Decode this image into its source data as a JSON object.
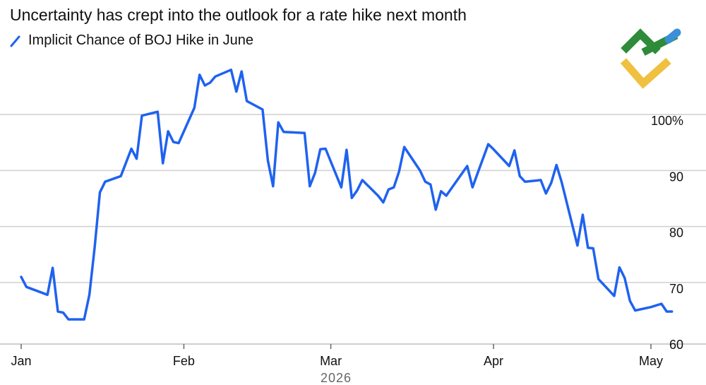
{
  "chart_data": {
    "type": "line",
    "title": "Uncertainty has crept into the outlook for a rate hike next month",
    "legend_position": "top-left",
    "series": [
      {
        "name": "Implicit Chance of BOJ Hike in June",
        "color": "#1f62f0",
        "points": [
          [
            "2026-01-01",
            71.0
          ],
          [
            "2026-01-02",
            69.2
          ],
          [
            "2026-01-06",
            67.8
          ],
          [
            "2026-01-07",
            72.6
          ],
          [
            "2026-01-08",
            64.8
          ],
          [
            "2026-01-09",
            64.6
          ],
          [
            "2026-01-10",
            63.4
          ],
          [
            "2026-01-13",
            63.4
          ],
          [
            "2026-01-14",
            67.8
          ],
          [
            "2026-01-15",
            76.3
          ],
          [
            "2026-01-16",
            86.1
          ],
          [
            "2026-01-17",
            88.0
          ],
          [
            "2026-01-20",
            89.0
          ],
          [
            "2026-01-22",
            93.9
          ],
          [
            "2026-01-23",
            92.1
          ],
          [
            "2026-01-24",
            99.8
          ],
          [
            "2026-01-27",
            100.5
          ],
          [
            "2026-01-28",
            91.3
          ],
          [
            "2026-01-29",
            97.0
          ],
          [
            "2026-01-30",
            95.1
          ],
          [
            "2026-01-31",
            94.9
          ],
          [
            "2026-02-03",
            101.2
          ],
          [
            "2026-02-04",
            107.1
          ],
          [
            "2026-02-05",
            105.2
          ],
          [
            "2026-02-06",
            105.7
          ],
          [
            "2026-02-07",
            106.8
          ],
          [
            "2026-02-10",
            108.0
          ],
          [
            "2026-02-11",
            104.1
          ],
          [
            "2026-02-12",
            107.7
          ],
          [
            "2026-02-13",
            102.4
          ],
          [
            "2026-02-16",
            100.9
          ],
          [
            "2026-02-17",
            91.8
          ],
          [
            "2026-02-18",
            87.2
          ],
          [
            "2026-02-19",
            98.6
          ],
          [
            "2026-02-20",
            96.9
          ],
          [
            "2026-02-24",
            96.7
          ],
          [
            "2026-02-25",
            87.2
          ],
          [
            "2026-02-26",
            89.6
          ],
          [
            "2026-02-27",
            93.8
          ],
          [
            "2026-02-28",
            93.9
          ],
          [
            "2026-03-03",
            87.0
          ],
          [
            "2026-03-04",
            93.7
          ],
          [
            "2026-03-05",
            85.1
          ],
          [
            "2026-03-06",
            86.4
          ],
          [
            "2026-03-07",
            88.3
          ],
          [
            "2026-03-10",
            85.5
          ],
          [
            "2026-03-11",
            84.3
          ],
          [
            "2026-03-12",
            86.6
          ],
          [
            "2026-03-13",
            87.0
          ],
          [
            "2026-03-14",
            89.8
          ],
          [
            "2026-03-15",
            94.2
          ],
          [
            "2026-03-18",
            90.0
          ],
          [
            "2026-03-19",
            88.0
          ],
          [
            "2026-03-20",
            87.5
          ],
          [
            "2026-03-21",
            83.0
          ],
          [
            "2026-03-22",
            86.3
          ],
          [
            "2026-03-23",
            85.5
          ],
          [
            "2026-03-27",
            90.8
          ],
          [
            "2026-03-28",
            87.0
          ],
          [
            "2026-03-29",
            89.6
          ],
          [
            "2026-03-31",
            94.7
          ],
          [
            "2026-04-01",
            93.8
          ],
          [
            "2026-04-04",
            90.8
          ],
          [
            "2026-04-05",
            93.6
          ],
          [
            "2026-04-06",
            89.0
          ],
          [
            "2026-04-07",
            88.0
          ],
          [
            "2026-04-10",
            88.3
          ],
          [
            "2026-04-11",
            85.9
          ],
          [
            "2026-04-12",
            87.8
          ],
          [
            "2026-04-13",
            91.0
          ],
          [
            "2026-04-14",
            87.9
          ],
          [
            "2026-04-17",
            76.6
          ],
          [
            "2026-04-18",
            82.1
          ],
          [
            "2026-04-19",
            76.2
          ],
          [
            "2026-04-20",
            76.1
          ],
          [
            "2026-04-21",
            70.6
          ],
          [
            "2026-04-24",
            67.6
          ],
          [
            "2026-04-25",
            72.7
          ],
          [
            "2026-04-26",
            70.8
          ],
          [
            "2026-04-27",
            66.7
          ],
          [
            "2026-04-28",
            65.0
          ],
          [
            "2026-05-01",
            65.6
          ],
          [
            "2026-05-03",
            66.2
          ],
          [
            "2026-05-04",
            64.8
          ],
          [
            "2026-05-05",
            64.8
          ]
        ]
      }
    ],
    "x_ticks": [
      {
        "date": "2026-01-01",
        "label": "Jan"
      },
      {
        "date": "2026-02-01",
        "label": "Feb"
      },
      {
        "date": "2026-03-01",
        "label": "Mar"
      },
      {
        "date": "2026-04-01",
        "label": "Apr"
      },
      {
        "date": "2026-05-01",
        "label": "May"
      }
    ],
    "x_sublabel": "2026",
    "y_ticks": [
      {
        "value": 60,
        "label": "60"
      },
      {
        "value": 70,
        "label": "70"
      },
      {
        "value": 80,
        "label": "80"
      },
      {
        "value": 90,
        "label": "90"
      },
      {
        "value": 100,
        "label": "100%"
      }
    ],
    "xlim": [
      "2026-01-01",
      "2026-05-01"
    ],
    "ylim": [
      59,
      111
    ],
    "y_axis_position": "right",
    "grid": "horizontal",
    "colors": {
      "line": "#1f62f0",
      "grid": "#cfcfcf",
      "axis": "#666666"
    }
  },
  "logo": {
    "name": "brand-logo",
    "colors": {
      "green": "#2e8b3a",
      "blue": "#3a8fd8",
      "yellow": "#f0c040"
    }
  }
}
